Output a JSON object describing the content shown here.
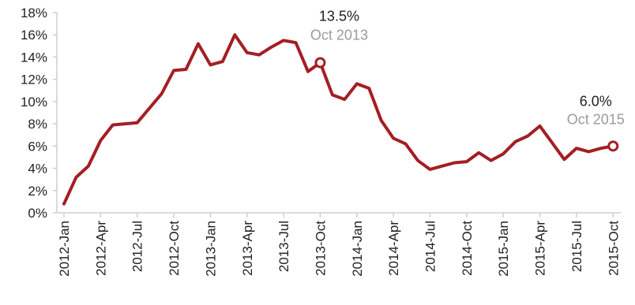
{
  "chart_data": {
    "type": "line",
    "title": "",
    "xlabel": "",
    "ylabel": "",
    "ylim": [
      0,
      18
    ],
    "y_ticks": [
      0,
      2,
      4,
      6,
      8,
      10,
      12,
      14,
      16,
      18
    ],
    "y_tick_labels": [
      "0%",
      "2%",
      "4%",
      "6%",
      "8%",
      "10%",
      "12%",
      "14%",
      "16%",
      "18%"
    ],
    "x_tick_labels": [
      "2012-Jan",
      "2012-Apr",
      "2012-Jul",
      "2012-Oct",
      "2013-Jan",
      "2013-Apr",
      "2013-Jul",
      "2013-Oct",
      "2014-Jan",
      "2014-Apr",
      "2014-Jul",
      "2014-Oct",
      "2015-Jan",
      "2015-Apr",
      "2015-Jul",
      "2015-Oct"
    ],
    "grid": false,
    "line_color": "#a31f24",
    "series": [
      {
        "x": [
          "2012-01",
          "2012-02",
          "2012-03",
          "2012-04",
          "2012-05",
          "2012-06",
          "2012-07",
          "2012-08",
          "2012-09",
          "2012-10",
          "2012-11",
          "2012-12",
          "2013-01",
          "2013-02",
          "2013-03",
          "2013-04",
          "2013-05",
          "2013-06",
          "2013-07",
          "2013-08",
          "2013-09",
          "2013-10",
          "2013-11",
          "2013-12",
          "2014-01",
          "2014-02",
          "2014-03",
          "2014-04",
          "2014-05",
          "2014-06",
          "2014-07",
          "2014-08",
          "2014-09",
          "2014-10",
          "2014-11",
          "2014-12",
          "2015-01",
          "2015-02",
          "2015-03",
          "2015-04",
          "2015-05",
          "2015-06",
          "2015-07",
          "2015-08",
          "2015-09",
          "2015-10"
        ],
        "values": [
          0.8,
          3.2,
          4.2,
          6.5,
          7.9,
          8.0,
          8.1,
          9.4,
          10.7,
          12.8,
          12.9,
          15.2,
          13.3,
          13.6,
          16.0,
          14.4,
          14.2,
          14.9,
          15.5,
          15.3,
          12.7,
          13.5,
          10.6,
          10.2,
          11.6,
          11.2,
          8.3,
          6.7,
          6.2,
          4.7,
          3.9,
          4.2,
          4.5,
          4.6,
          5.4,
          4.7,
          5.3,
          6.4,
          6.9,
          7.8,
          6.3,
          4.8,
          5.8,
          5.5,
          5.8,
          6.0
        ]
      }
    ],
    "annotations": [
      {
        "value_label": "13.5%",
        "date_label": "Oct 2013",
        "x": "2013-10",
        "y": 13.5
      },
      {
        "value_label": "6.0%",
        "date_label": "Oct 2015",
        "x": "2015-10",
        "y": 6.0
      }
    ]
  }
}
